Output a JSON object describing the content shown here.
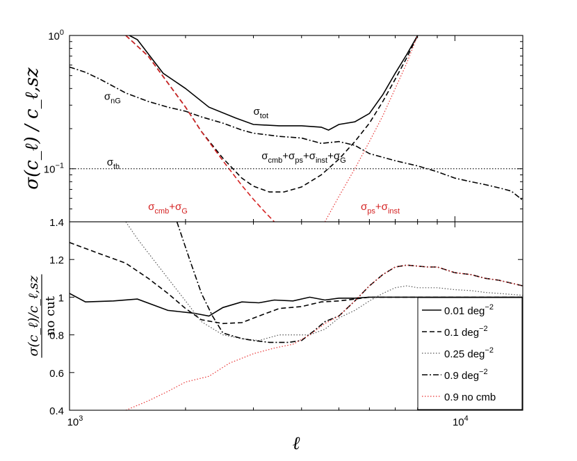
{
  "chart_data": [
    {
      "type": "line",
      "panel": "top",
      "xscale": "log",
      "yscale": "log",
      "xlim": [
        1000,
        15000
      ],
      "ylim": [
        0.04,
        1.0
      ],
      "ylabel": "σ(c_ℓ) / c_ℓ,sz",
      "yticks": [
        {
          "value": 1.0,
          "base": "10",
          "exp": "0"
        },
        {
          "value": 0.1,
          "base": "10",
          "exp": "−1"
        }
      ],
      "series": [
        {
          "name": "sigma_tot",
          "color": "#000000",
          "dash": "solid",
          "x": [
            1430,
            1500,
            1750,
            2000,
            2300,
            2700,
            3000,
            3500,
            4000,
            4500,
            4700,
            5000,
            5500,
            6000,
            6500,
            7000,
            7500,
            8000
          ],
          "y": [
            1.0,
            0.93,
            0.52,
            0.4,
            0.29,
            0.24,
            0.215,
            0.21,
            0.21,
            0.205,
            0.195,
            0.215,
            0.225,
            0.26,
            0.36,
            0.52,
            0.72,
            1.0
          ]
        },
        {
          "name": "sigma_cmb+ps+inst+G",
          "color": "#000000",
          "dash": "dashed",
          "x": [
            1400,
            1600,
            1800,
            2000,
            2200,
            2500,
            2800,
            3000,
            3300,
            3600,
            4000,
            4500,
            5000,
            5500,
            6000,
            6500,
            7000,
            7500,
            8000
          ],
          "y": [
            1.0,
            0.7,
            0.44,
            0.29,
            0.19,
            0.12,
            0.085,
            0.074,
            0.067,
            0.067,
            0.073,
            0.09,
            0.118,
            0.16,
            0.22,
            0.32,
            0.47,
            0.68,
            1.0
          ]
        },
        {
          "name": "sigma_cmb+G",
          "color": "#d42020",
          "dash": "dashed",
          "x": [
            1400,
            1600,
            1800,
            2000,
            2200,
            2500,
            2800,
            3000,
            3200,
            3400
          ],
          "y": [
            1.0,
            0.7,
            0.44,
            0.29,
            0.19,
            0.115,
            0.075,
            0.059,
            0.048,
            0.04
          ]
        },
        {
          "name": "sigma_ps+inst",
          "color": "#e83030",
          "dash": "dotted",
          "x": [
            4600,
            5000,
            5500,
            6000,
            6500,
            7000,
            7500,
            8000
          ],
          "y": [
            0.04,
            0.062,
            0.1,
            0.16,
            0.25,
            0.4,
            0.62,
            1.0
          ]
        },
        {
          "name": "sigma_nG",
          "color": "#000000",
          "dash": "dashdot",
          "x": [
            1000,
            1100,
            1200,
            1400,
            1600,
            1800,
            2000,
            2200,
            2500,
            2800,
            3000,
            3500,
            4000,
            4500,
            5000,
            5500,
            6000,
            7000,
            8000,
            9000,
            10000,
            11000,
            12000,
            13000,
            14000,
            15000
          ],
          "y": [
            0.58,
            0.53,
            0.47,
            0.37,
            0.32,
            0.29,
            0.27,
            0.245,
            0.22,
            0.195,
            0.185,
            0.175,
            0.17,
            0.155,
            0.16,
            0.15,
            0.13,
            0.115,
            0.105,
            0.095,
            0.085,
            0.08,
            0.076,
            0.072,
            0.068,
            0.058
          ]
        },
        {
          "name": "sigma_th",
          "color": "#000000",
          "dash": "dotted",
          "x": [
            1000,
            15000
          ],
          "y": [
            0.1,
            0.1
          ]
        }
      ],
      "annotations": [
        {
          "base": "σ",
          "sub": "nG",
          "x": 1230,
          "y": 0.33,
          "color": "#000000"
        },
        {
          "base": "σ",
          "sub": "tot",
          "x": 3000,
          "y": 0.255,
          "color": "#000000"
        },
        {
          "base": "σ",
          "sub": "th",
          "x": 1250,
          "y": 0.106,
          "color": "#000000"
        },
        {
          "base": "σ",
          "parts": [
            "σ",
            "cmb",
            "+σ",
            "ps",
            "+σ",
            "inst",
            "+σ",
            "G"
          ],
          "x": 3150,
          "y": 0.118,
          "color": "#000000"
        },
        {
          "base": "σ",
          "parts": [
            "σ",
            "cmb",
            "+σ",
            "G"
          ],
          "x": 1600,
          "y": 0.049,
          "color": "#d42020"
        },
        {
          "base": "σ",
          "parts": [
            "σ",
            "ps",
            "+σ",
            "inst"
          ],
          "x": 5700,
          "y": 0.049,
          "color": "#d42020"
        }
      ]
    },
    {
      "type": "line",
      "panel": "bottom",
      "xscale": "log",
      "yscale": "linear",
      "xlim": [
        1000,
        15000
      ],
      "ylim": [
        0.4,
        1.4
      ],
      "xlabel": "ℓ",
      "ylabel_num": "σ(c_ℓ)/c_ℓ,sz",
      "ylabel_den": "no cut",
      "yticks": [
        "0.4",
        "0.6",
        "0.8",
        "1",
        "1.2",
        "1.4"
      ],
      "xticks": [
        {
          "value": 1000,
          "base": "10",
          "exp": "3"
        },
        {
          "value": 10000,
          "base": "10",
          "exp": "4"
        }
      ],
      "legend": "bottom-right",
      "series": [
        {
          "name": "0.01 deg",
          "exp": "−2",
          "color": "#000000",
          "dash": "solid",
          "x": [
            1000,
            1100,
            1300,
            1500,
            1800,
            2100,
            2300,
            2500,
            2800,
            3100,
            3400,
            3800,
            4200,
            4600,
            5000,
            5500,
            6000,
            7000,
            8000,
            10000,
            12000,
            15000
          ],
          "y": [
            1.02,
            0.975,
            0.98,
            0.99,
            0.93,
            0.915,
            0.9,
            0.945,
            0.975,
            0.97,
            0.985,
            0.98,
            1.0,
            0.985,
            0.995,
            0.995,
            1.0,
            1.0,
            1.0,
            1.0,
            1.0,
            1.0
          ]
        },
        {
          "name": "0.1 deg",
          "exp": "−2",
          "color": "#000000",
          "dash": "dashed",
          "x": [
            1000,
            1200,
            1400,
            1600,
            1800,
            2000,
            2200,
            2500,
            2800,
            3100,
            3500,
            4000,
            4500,
            5000,
            5500,
            6000,
            7000,
            8000,
            10000,
            12000,
            15000
          ],
          "y": [
            1.29,
            1.23,
            1.18,
            1.1,
            1.02,
            0.94,
            0.88,
            0.86,
            0.865,
            0.9,
            0.94,
            0.95,
            0.975,
            0.98,
            0.99,
            1.0,
            1.0,
            1.0,
            1.0,
            1.0,
            1.0
          ]
        },
        {
          "name": "0.25 deg",
          "exp": "−2",
          "color": "#555555",
          "dash": "dotted",
          "x": [
            1400,
            1500,
            1650,
            1800,
            2000,
            2200,
            2500,
            2800,
            3100,
            3500,
            3800,
            4200,
            4600,
            5000,
            5500,
            6000,
            6500,
            7000,
            7500,
            8000,
            9000,
            10000,
            11000,
            12000,
            13000,
            15000
          ],
          "y": [
            1.4,
            1.31,
            1.2,
            1.1,
            0.98,
            0.87,
            0.8,
            0.78,
            0.77,
            0.8,
            0.8,
            0.8,
            0.83,
            0.89,
            0.93,
            0.98,
            1.02,
            1.05,
            1.06,
            1.05,
            1.05,
            1.04,
            1.035,
            1.025,
            1.02,
            1.01
          ]
        },
        {
          "name": "0.9 deg",
          "exp": "−2",
          "color": "#000000",
          "dash": "dashdot",
          "x": [
            1900,
            2050,
            2200,
            2350,
            2500,
            2800,
            3000,
            3300,
            3700,
            4000,
            4300,
            4600,
            5000,
            5500,
            6000,
            6500,
            7000,
            7500,
            8000,
            8500,
            9000,
            10000,
            11000,
            12000,
            13000,
            15000
          ],
          "y": [
            1.4,
            1.2,
            1.02,
            0.9,
            0.81,
            0.78,
            0.77,
            0.76,
            0.76,
            0.77,
            0.82,
            0.87,
            0.9,
            0.98,
            1.06,
            1.12,
            1.16,
            1.17,
            1.165,
            1.16,
            1.16,
            1.13,
            1.12,
            1.1,
            1.09,
            1.06
          ]
        },
        {
          "name": "0.9 no cmb",
          "exp": "",
          "color": "#e83030",
          "dash": "dotted",
          "x": [
            1400,
            1600,
            1800,
            2000,
            2300,
            2600,
            3000,
            3400,
            3800,
            4200,
            4600,
            5000,
            5500,
            6000,
            6500,
            7000,
            7500,
            8000,
            8500,
            9000,
            10000,
            11000,
            12000,
            13000,
            15000
          ],
          "y": [
            0.4,
            0.45,
            0.5,
            0.55,
            0.58,
            0.65,
            0.7,
            0.73,
            0.75,
            0.8,
            0.86,
            0.9,
            0.98,
            1.06,
            1.12,
            1.16,
            1.17,
            1.165,
            1.16,
            1.16,
            1.13,
            1.12,
            1.1,
            1.09,
            1.06
          ]
        }
      ]
    }
  ]
}
